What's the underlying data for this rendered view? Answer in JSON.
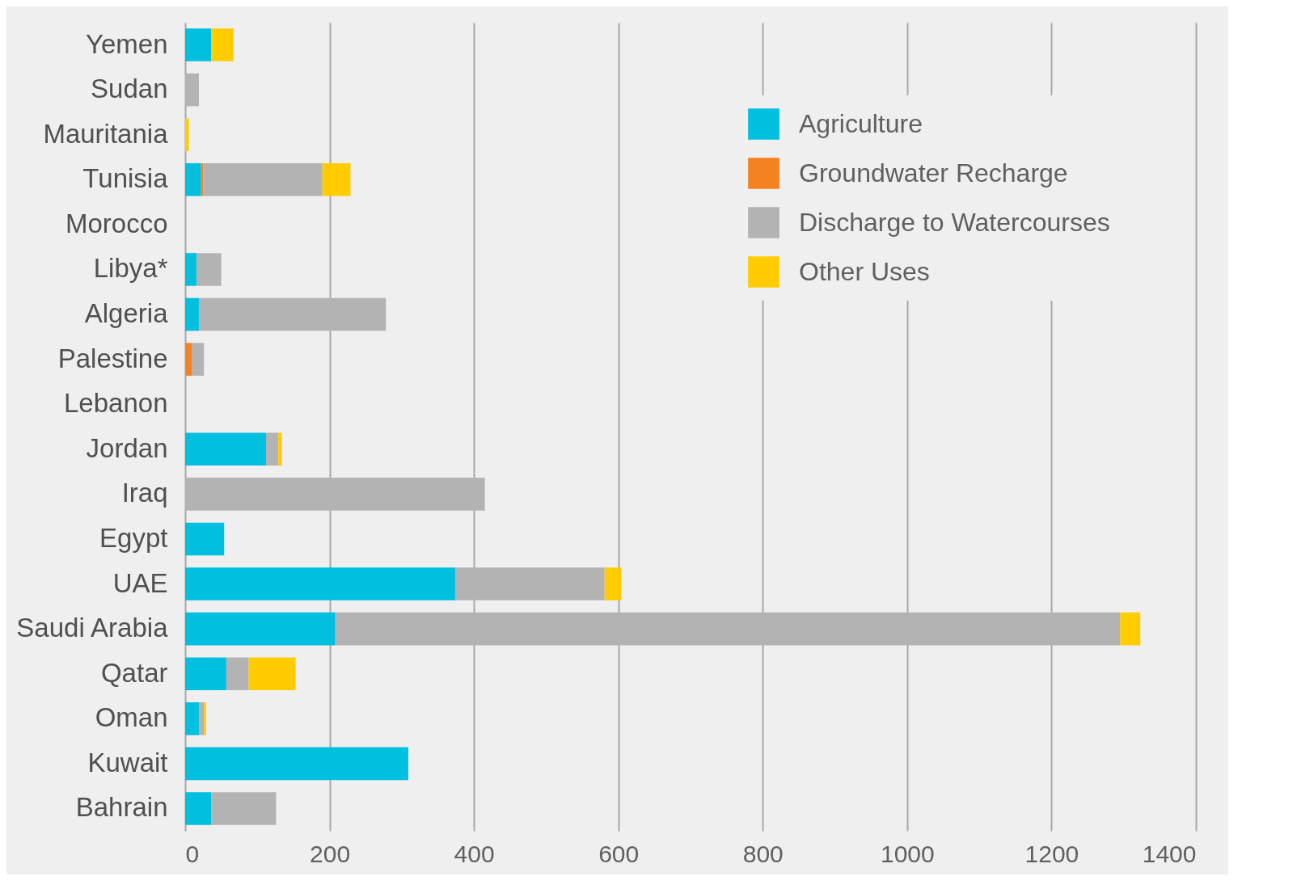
{
  "chart_data": {
    "type": "bar",
    "orientation": "horizontal",
    "stacked": true,
    "categories": [
      "Yemen",
      "Sudan",
      "Mauritania",
      "Tunisia",
      "Morocco",
      "Libya*",
      "Algeria",
      "Palestine",
      "Lebanon",
      "Jordan",
      "Iraq",
      "Egypt",
      "UAE",
      "Saudi Arabia",
      "Qatar",
      "Oman",
      "Kuwait",
      "Bahrain"
    ],
    "series": [
      {
        "name": "Agriculture",
        "color": "#00bfdf",
        "values": [
          36,
          null,
          null,
          22,
          null,
          16,
          19,
          null,
          null,
          112,
          null,
          54,
          374,
          208,
          57,
          19,
          309,
          36
        ]
      },
      {
        "name": "Groundwater Recharge",
        "color": "#f58220",
        "values": [
          null,
          null,
          null,
          3,
          null,
          null,
          null,
          9,
          null,
          null,
          null,
          null,
          null,
          null,
          null,
          null,
          null,
          null
        ]
      },
      {
        "name": "Discharge to Watercourses",
        "color": "#b3b3b3",
        "values": [
          null,
          19,
          null,
          165,
          null,
          34,
          259,
          17,
          null,
          17,
          415,
          null,
          207,
          1087,
          31,
          7,
          null,
          90
        ]
      },
      {
        "name": "Other Uses",
        "color": "#ffcc00",
        "values": [
          31,
          null,
          5,
          39,
          null,
          null,
          null,
          null,
          null,
          5,
          null,
          null,
          23,
          28,
          65,
          3,
          null,
          null
        ]
      }
    ],
    "xlim": [
      0,
      1400
    ],
    "xticks": [
      0,
      200,
      400,
      600,
      800,
      1000,
      1200,
      1400
    ],
    "grid": "x",
    "legend": "top right"
  }
}
